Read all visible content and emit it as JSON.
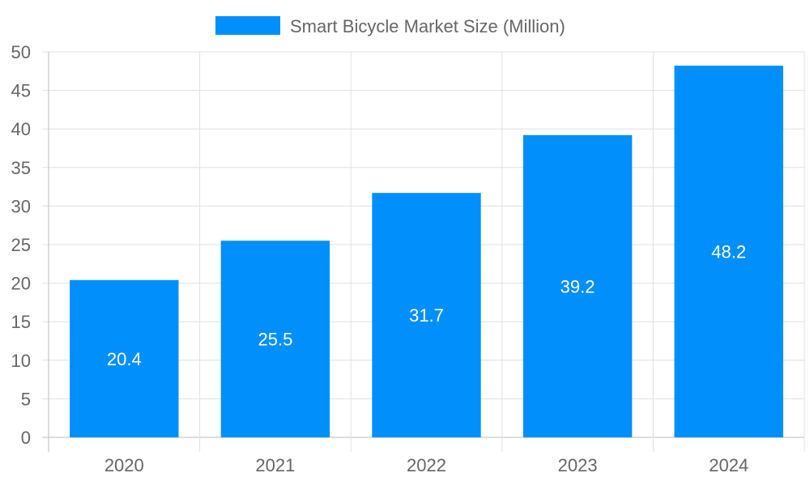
{
  "chart_data": {
    "type": "bar",
    "categories": [
      "2020",
      "2021",
      "2022",
      "2023",
      "2024"
    ],
    "series": [
      {
        "name": "Smart Bicycle Market Size (Million)",
        "values": [
          20.4,
          25.5,
          31.7,
          39.2,
          48.2
        ],
        "color": "#008ffb"
      }
    ],
    "ylim": [
      0,
      50
    ],
    "yticks": [
      0,
      5,
      10,
      15,
      20,
      25,
      30,
      35,
      40,
      45,
      50
    ],
    "grid": true,
    "legend": "top",
    "data_labels": true
  }
}
